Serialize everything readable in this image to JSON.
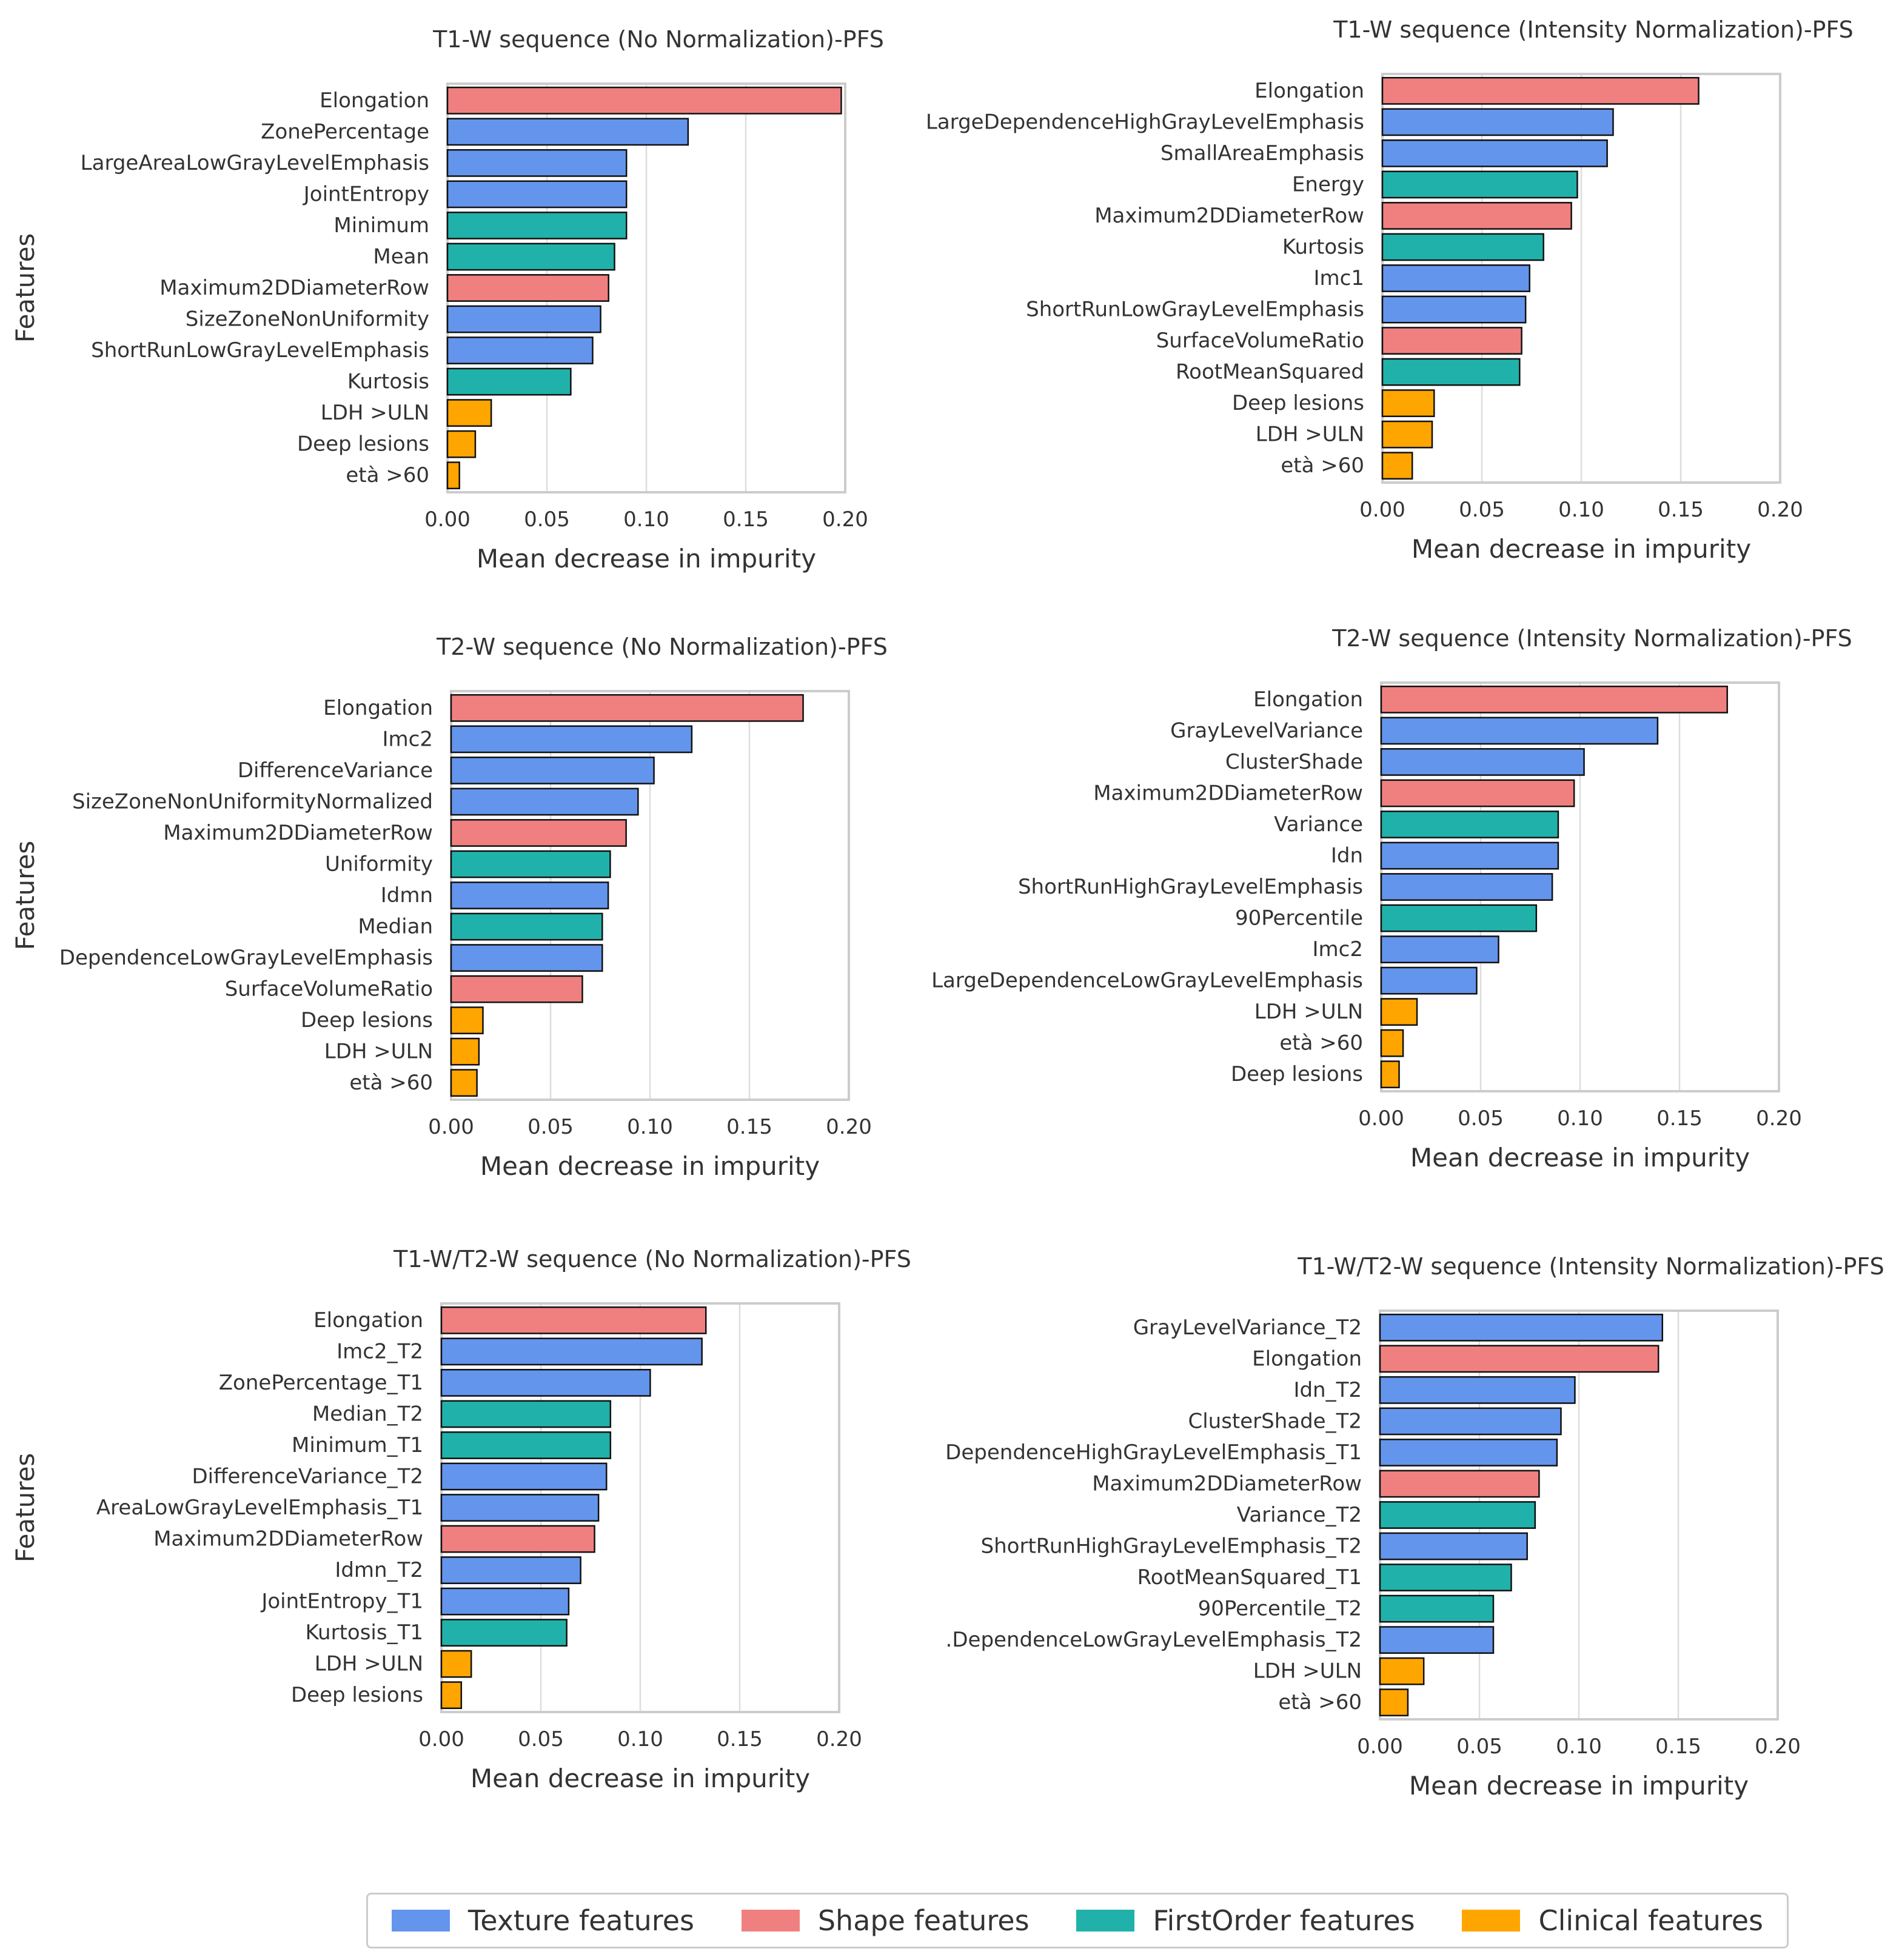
{
  "colors": {
    "Texture": "#6495ED",
    "Shape": "#F08080",
    "FirstOrder": "#20B2AA",
    "Clinical": "#FFA500"
  },
  "legend": [
    {
      "category": "Texture",
      "label": "Texture features"
    },
    {
      "category": "Shape",
      "label": "Shape features"
    },
    {
      "category": "FirstOrder",
      "label": "FirstOrder features"
    },
    {
      "category": "Clinical",
      "label": "Clinical features"
    }
  ],
  "chart_data": [
    {
      "type": "bar",
      "orientation": "horizontal",
      "title": "T1-W sequence (No Normalization)-PFS",
      "xlabel": "Mean decrease in impurity",
      "ylabel": "Features",
      "xlim": [
        0,
        0.2
      ],
      "xticks": [
        "0.00",
        "0.05",
        "0.10",
        "0.15",
        "0.20"
      ],
      "categories": [
        "Elongation",
        "ZonePercentage",
        "LargeAreaLowGrayLevelEmphasis",
        "JointEntropy",
        "Minimum",
        "Mean",
        "Maximum2DDiameterRow",
        "SizeZoneNonUniformity",
        "ShortRunLowGrayLevelEmphasis",
        "Kurtosis",
        "LDH >ULN",
        "Deep lesions",
        "età >60"
      ],
      "values": [
        0.198,
        0.121,
        0.09,
        0.09,
        0.09,
        0.084,
        0.081,
        0.077,
        0.073,
        0.062,
        0.022,
        0.014,
        0.006
      ],
      "groups": [
        "Shape",
        "Texture",
        "Texture",
        "Texture",
        "FirstOrder",
        "FirstOrder",
        "Shape",
        "Texture",
        "Texture",
        "FirstOrder",
        "Clinical",
        "Clinical",
        "Clinical"
      ]
    },
    {
      "type": "bar",
      "orientation": "horizontal",
      "title": "T1-W sequence (Intensity Normalization)-PFS",
      "xlabel": "Mean decrease in impurity",
      "ylabel": "",
      "xlim": [
        0,
        0.2
      ],
      "xticks": [
        "0.00",
        "0.05",
        "0.10",
        "0.15",
        "0.20"
      ],
      "categories": [
        "Elongation",
        "LargeDependenceHighGrayLevelEmphasis",
        "SmallAreaEmphasis",
        "Energy",
        "Maximum2DDiameterRow",
        "Kurtosis",
        "Imc1",
        "ShortRunLowGrayLevelEmphasis",
        "SurfaceVolumeRatio",
        "RootMeanSquared",
        "Deep lesions",
        "LDH >ULN",
        "età >60"
      ],
      "values": [
        0.159,
        0.116,
        0.113,
        0.098,
        0.095,
        0.081,
        0.074,
        0.072,
        0.07,
        0.069,
        0.026,
        0.025,
        0.015
      ],
      "groups": [
        "Shape",
        "Texture",
        "Texture",
        "FirstOrder",
        "Shape",
        "FirstOrder",
        "Texture",
        "Texture",
        "Shape",
        "FirstOrder",
        "Clinical",
        "Clinical",
        "Clinical"
      ]
    },
    {
      "type": "bar",
      "orientation": "horizontal",
      "title": "T2-W sequence (No Normalization)-PFS",
      "xlabel": "Mean decrease in impurity",
      "ylabel": "Features",
      "xlim": [
        0,
        0.2
      ],
      "xticks": [
        "0.00",
        "0.05",
        "0.10",
        "0.15",
        "0.20"
      ],
      "categories": [
        "Elongation",
        "Imc2",
        "DifferenceVariance",
        "SizeZoneNonUniformityNormalized",
        "Maximum2DDiameterRow",
        "Uniformity",
        "Idmn",
        "Median",
        "DependenceLowGrayLevelEmphasis",
        "SurfaceVolumeRatio",
        "Deep lesions",
        "LDH >ULN",
        "età >60"
      ],
      "values": [
        0.177,
        0.121,
        0.102,
        0.094,
        0.088,
        0.08,
        0.079,
        0.076,
        0.076,
        0.066,
        0.016,
        0.014,
        0.013
      ],
      "groups": [
        "Shape",
        "Texture",
        "Texture",
        "Texture",
        "Shape",
        "FirstOrder",
        "Texture",
        "FirstOrder",
        "Texture",
        "Shape",
        "Clinical",
        "Clinical",
        "Clinical"
      ]
    },
    {
      "type": "bar",
      "orientation": "horizontal",
      "title": "T2-W sequence (Intensity Normalization)-PFS",
      "xlabel": "Mean decrease in impurity",
      "ylabel": "",
      "xlim": [
        0,
        0.2
      ],
      "xticks": [
        "0.00",
        "0.05",
        "0.10",
        "0.15",
        "0.20"
      ],
      "categories": [
        "Elongation",
        "GrayLevelVariance",
        "ClusterShade",
        "Maximum2DDiameterRow",
        "Variance",
        "Idn",
        "ShortRunHighGrayLevelEmphasis",
        "90Percentile",
        "Imc2",
        "LargeDependenceLowGrayLevelEmphasis",
        "LDH >ULN",
        "età >60",
        "Deep lesions"
      ],
      "values": [
        0.174,
        0.139,
        0.102,
        0.097,
        0.089,
        0.089,
        0.086,
        0.078,
        0.059,
        0.048,
        0.018,
        0.011,
        0.009
      ],
      "groups": [
        "Shape",
        "Texture",
        "Texture",
        "Shape",
        "FirstOrder",
        "Texture",
        "Texture",
        "FirstOrder",
        "Texture",
        "Texture",
        "Clinical",
        "Clinical",
        "Clinical"
      ]
    },
    {
      "type": "bar",
      "orientation": "horizontal",
      "title": "T1-W/T2-W sequence (No Normalization)-PFS",
      "xlabel": "Mean decrease in impurity",
      "ylabel": "Features",
      "xlim": [
        0,
        0.2
      ],
      "xticks": [
        "0.00",
        "0.05",
        "0.10",
        "0.15",
        "0.20"
      ],
      "categories": [
        "Elongation",
        "Imc2_T2",
        "ZonePercentage_T1",
        "Median_T2",
        "Minimum_T1",
        "DifferenceVariance_T2",
        "AreaLowGrayLevelEmphasis_T1",
        "Maximum2DDiameterRow",
        "Idmn_T2",
        "JointEntropy_T1",
        "Kurtosis_T1",
        "LDH >ULN",
        "Deep lesions"
      ],
      "values": [
        0.133,
        0.131,
        0.105,
        0.085,
        0.085,
        0.083,
        0.079,
        0.077,
        0.07,
        0.064,
        0.063,
        0.015,
        0.01
      ],
      "groups": [
        "Shape",
        "Texture",
        "Texture",
        "FirstOrder",
        "FirstOrder",
        "Texture",
        "Texture",
        "Shape",
        "Texture",
        "Texture",
        "FirstOrder",
        "Clinical",
        "Clinical"
      ]
    },
    {
      "type": "bar",
      "orientation": "horizontal",
      "title": "T1-W/T2-W sequence (Intensity Normalization)-PFS",
      "xlabel": "Mean decrease in impurity",
      "ylabel": "",
      "xlim": [
        0,
        0.2
      ],
      "xticks": [
        "0.00",
        "0.05",
        "0.10",
        "0.15",
        "0.20"
      ],
      "categories": [
        "GrayLevelVariance_T2",
        "Elongation",
        "Idn_T2",
        "ClusterShade_T2",
        "DependenceHighGrayLevelEmphasis_T1",
        "Maximum2DDiameterRow",
        "Variance_T2",
        "ShortRunHighGrayLevelEmphasis_T2",
        "RootMeanSquared_T1",
        "90Percentile_T2",
        ".DependenceLowGrayLevelEmphasis_T2",
        "LDH >ULN",
        "età >60"
      ],
      "values": [
        0.142,
        0.14,
        0.098,
        0.091,
        0.089,
        0.08,
        0.078,
        0.074,
        0.066,
        0.057,
        0.057,
        0.022,
        0.014
      ],
      "groups": [
        "Texture",
        "Shape",
        "Texture",
        "Texture",
        "Texture",
        "Shape",
        "FirstOrder",
        "Texture",
        "FirstOrder",
        "FirstOrder",
        "Texture",
        "Clinical",
        "Clinical"
      ]
    }
  ]
}
